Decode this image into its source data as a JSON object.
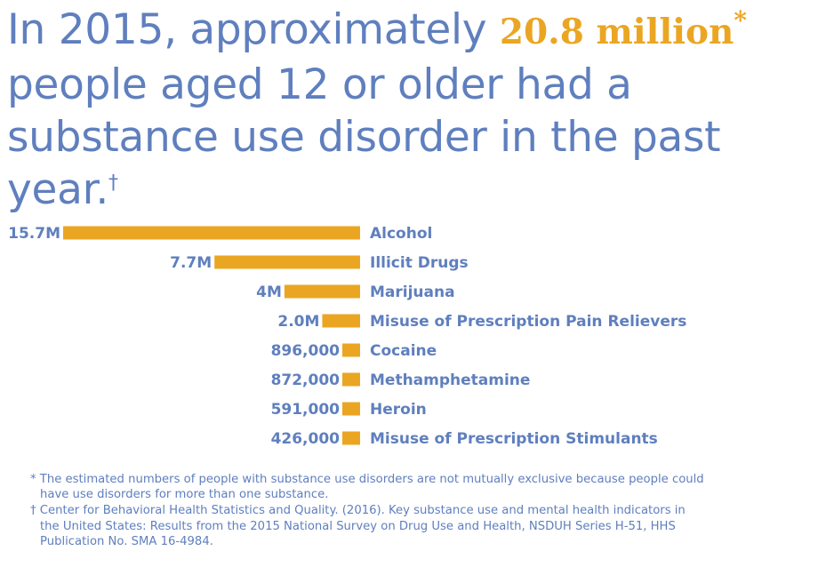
{
  "headline": {
    "text_before": "In 2015, approximately ",
    "highlight": "20.8 million",
    "highlight_mark": "*",
    "text_after": " people aged 12 or older had a substance use disorder in the past year.",
    "end_mark": "†"
  },
  "colors": {
    "bar": "#eaa623",
    "text": "#5f7fbe",
    "highlight": "#eaa623"
  },
  "chart_data": {
    "type": "bar",
    "orientation": "horizontal",
    "categories": [
      "Alcohol",
      "Illicit Drugs",
      "Marijuana",
      "Misuse of Prescription Pain Relievers",
      "Cocaine",
      "Methamphetamine",
      "Heroin",
      "Misuse of Prescription Stimulants"
    ],
    "values": [
      15700000,
      7700000,
      4000000,
      2000000,
      896000,
      872000,
      591000,
      426000
    ],
    "value_labels": [
      "15.7M",
      "7.7M",
      "4M",
      "2.0M",
      "896,000",
      "872,000",
      "591,000",
      "426,000"
    ],
    "grid": false,
    "legend": "none"
  },
  "footnotes": [
    "* The estimated numbers of people with substance use disorders are not mutually exclusive because people could have use disorders for more than one substance.",
    "† Center for Behavioral Health Statistics and Quality. (2016). Key substance use and mental health indicators in the United States: Results from the 2015 National Survey on Drug Use and Health, NSDUH Series H-51, HHS Publication No. SMA 16-4984."
  ]
}
